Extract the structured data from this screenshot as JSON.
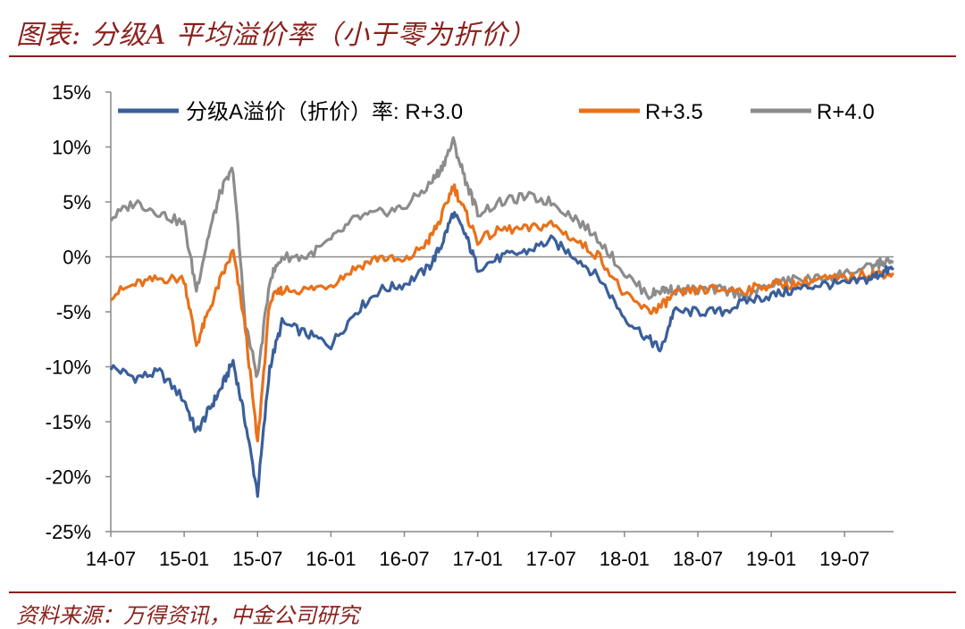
{
  "title": "图表: 分级A  平均溢价率（小于零为折价）",
  "source": "资料来源：万得资讯，中金公司研究",
  "chart_data": {
    "type": "line",
    "ylim": [
      -25,
      15
    ],
    "y_ticks": [
      "15%",
      "10%",
      "5%",
      "0%",
      "-5%",
      "-10%",
      "-15%",
      "-20%",
      "-25%"
    ],
    "x_ticks": [
      "14-07",
      "15-01",
      "15-07",
      "16-01",
      "16-07",
      "17-01",
      "17-07",
      "18-01",
      "18-07",
      "19-01",
      "19-07"
    ],
    "x": [
      "14-07",
      "14-09",
      "14-11",
      "15-01",
      "15-02",
      "15-03",
      "15-04",
      "15-05",
      "15-06",
      "15-07",
      "15-08",
      "15-09",
      "15-11",
      "16-01",
      "16-03",
      "16-05",
      "16-07",
      "16-09",
      "16-10",
      "16-11",
      "16-12",
      "17-01",
      "17-03",
      "17-05",
      "17-07",
      "17-09",
      "17-11",
      "18-01",
      "18-03",
      "18-04",
      "18-05",
      "18-07",
      "18-09",
      "18-11",
      "19-01",
      "19-03",
      "19-05",
      "19-07",
      "19-09",
      "19-10",
      "19-11"
    ],
    "legend": {
      "prefix": "分级A溢价（折价）率:",
      "placement": "top"
    },
    "series": [
      {
        "name": "R+3.0",
        "color": "#3a5f9a",
        "values": [
          -10,
          -11,
          -10.5,
          -13,
          -16,
          -14,
          -12,
          -9.5,
          -15,
          -21.5,
          -10,
          -6,
          -7,
          -8,
          -5,
          -3,
          -2.5,
          -1,
          1,
          4,
          2,
          -1,
          0,
          0.5,
          1.5,
          0,
          -2,
          -5.5,
          -7.5,
          -8.5,
          -5,
          -5,
          -5,
          -4,
          -3.5,
          -3,
          -2.5,
          -2.5,
          -2,
          -1.5,
          -1
        ]
      },
      {
        "name": "R+3.5",
        "color": "#e8711a",
        "values": [
          -3.5,
          -2.5,
          -2,
          -2,
          -8,
          -5,
          -2,
          0.5,
          -6.5,
          -17,
          -4,
          -3,
          -3,
          -2.5,
          -1,
          0,
          -0.5,
          1.5,
          3.5,
          6.5,
          4,
          1.5,
          2.5,
          2.5,
          3,
          1.5,
          0,
          -3.5,
          -5,
          -4.5,
          -3.5,
          -3,
          -3,
          -3,
          -2.5,
          -2.5,
          -2,
          -2,
          -1.5,
          -1.5,
          -1.5
        ]
      },
      {
        "name": "R+4.0",
        "color": "#8c8c8c",
        "values": [
          3.5,
          5,
          4,
          3,
          -3,
          2,
          6,
          8,
          -6,
          -11,
          -2,
          0,
          0,
          1.5,
          3.5,
          4,
          4.5,
          6.5,
          8,
          10.5,
          7,
          4,
          5,
          5.5,
          5,
          3.5,
          1.5,
          -1.5,
          -3.5,
          -3,
          -3,
          -3,
          -3,
          -3.5,
          -2.5,
          -2,
          -2,
          -1.5,
          -1,
          -0.5,
          -0.5
        ]
      }
    ]
  }
}
